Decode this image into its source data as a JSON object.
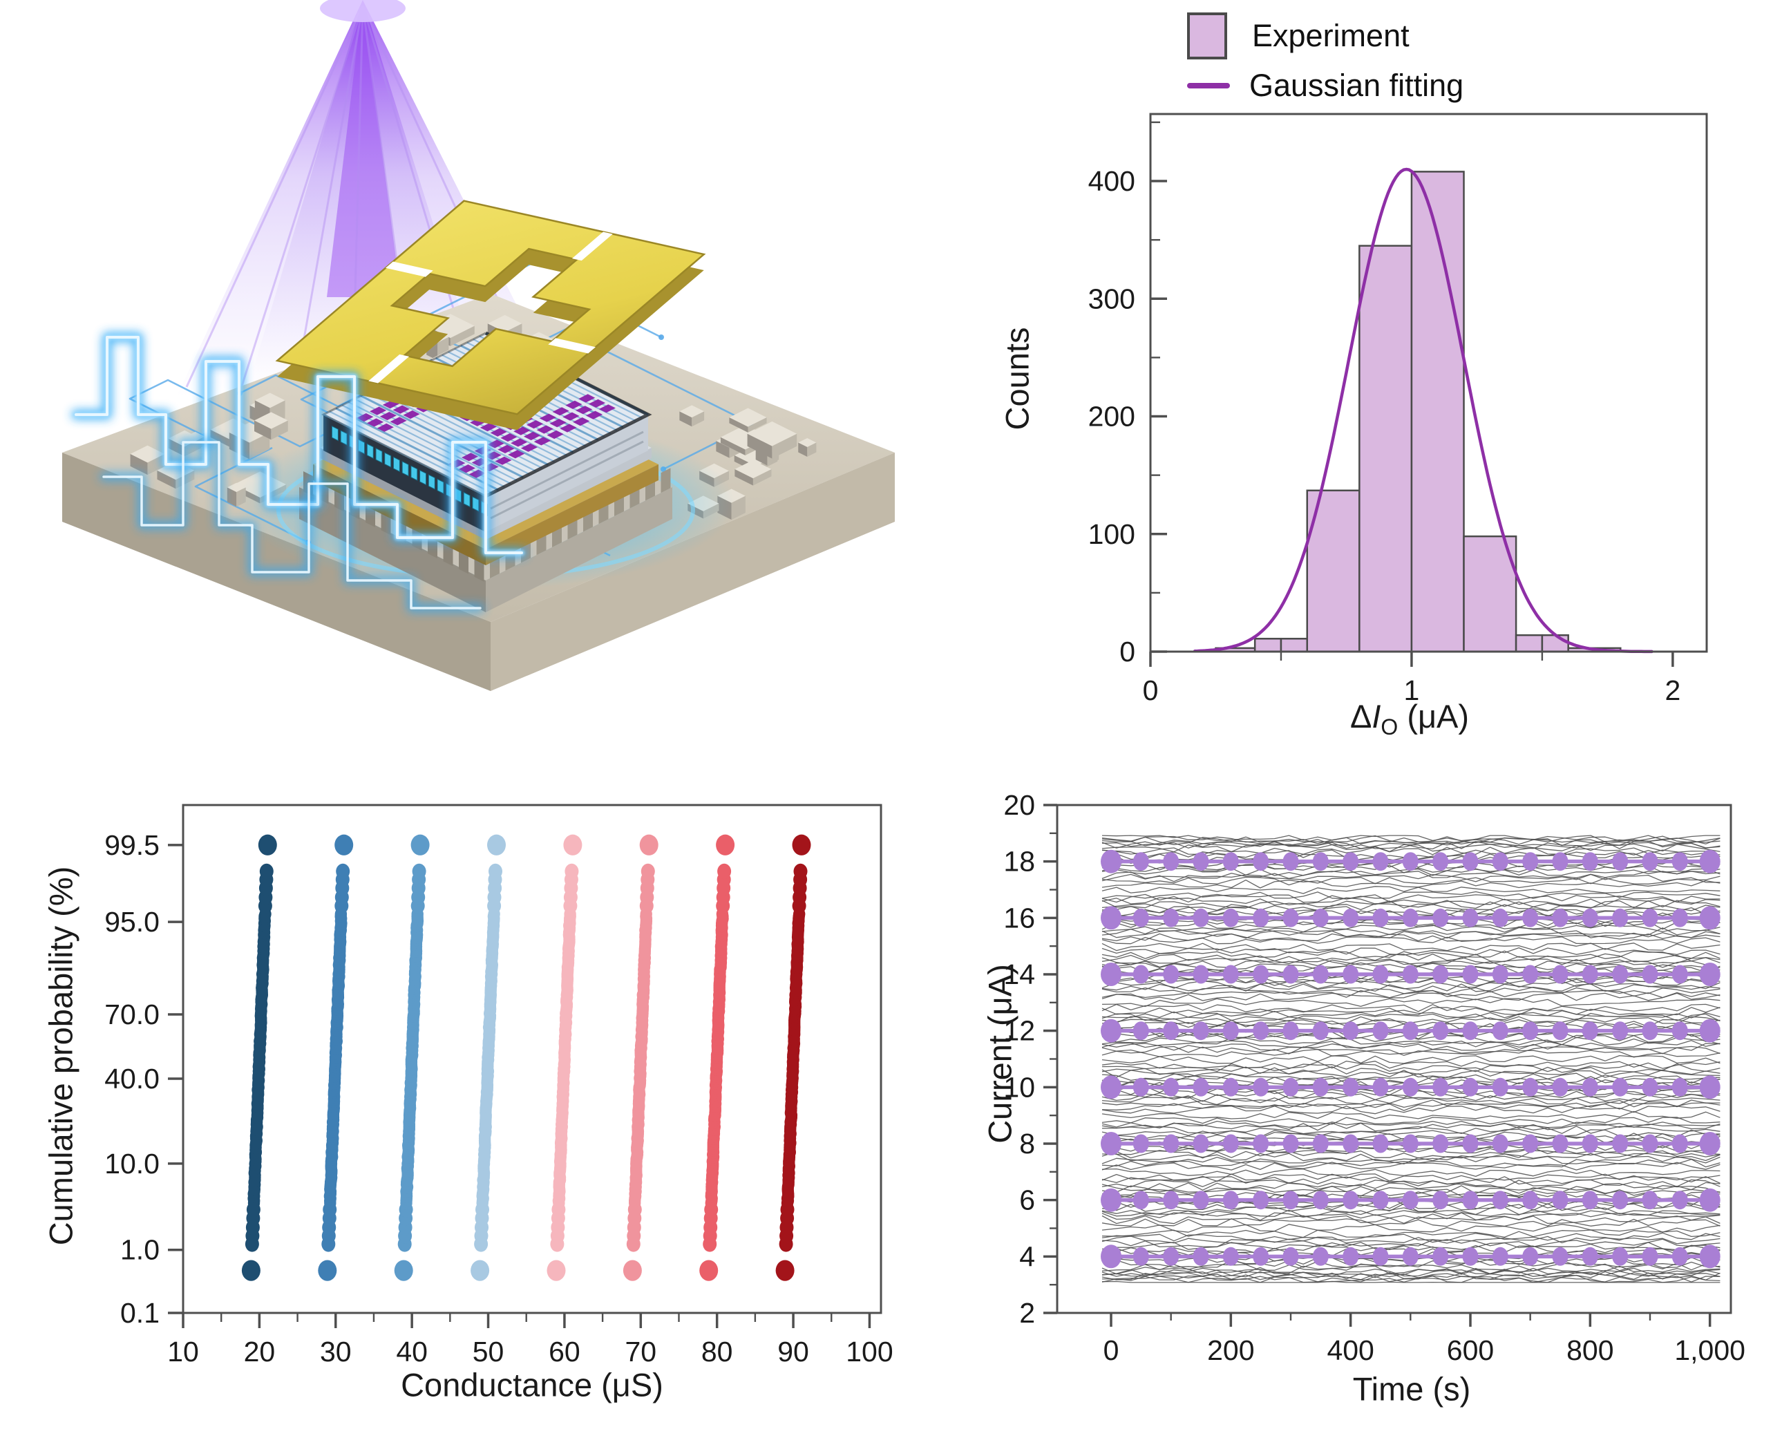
{
  "chart_data": [
    {
      "type": "bar",
      "panel": "output-current-histogram",
      "title": "",
      "xlabel": "ΔI_O (μA)",
      "xlabel_parts": {
        "prefix": "Δ",
        "symbol": "I",
        "subscript": "O",
        "suffix": " (μA)"
      },
      "ylabel": "Counts",
      "legend": [
        "Experiment",
        "Gaussian fitting"
      ],
      "xlim": [
        0,
        2.13
      ],
      "ylim": [
        0,
        457
      ],
      "xticks": {
        "values": [
          0,
          1,
          2
        ],
        "labels": [
          "0",
          "1",
          "2"
        ],
        "minor": [
          0.5,
          1.5
        ]
      },
      "yticks": {
        "values": [
          0,
          100,
          200,
          300,
          400
        ],
        "labels": [
          "0",
          "100",
          "200",
          "300",
          "400"
        ],
        "minor": [
          50,
          150,
          250,
          350,
          450
        ]
      },
      "bars": [
        [
          0.25,
          0.4,
          3
        ],
        [
          0.4,
          0.5,
          11
        ],
        [
          0.5,
          0.6,
          11
        ],
        [
          0.6,
          0.8,
          137
        ],
        [
          0.8,
          1.0,
          345
        ],
        [
          1.0,
          1.2,
          408
        ],
        [
          1.2,
          1.4,
          98
        ],
        [
          1.4,
          1.5,
          14
        ],
        [
          1.5,
          1.6,
          14
        ],
        [
          1.6,
          1.8,
          3
        ]
      ],
      "gaussian_fit": {
        "amplitude": 410,
        "mean": 0.98,
        "sigma": 0.22
      },
      "colors": {
        "bar_fill": "#dab8e0",
        "bar_edge": "#4a4a4a",
        "fit_line": "#8e2fa6"
      }
    },
    {
      "type": "scatter",
      "panel": "conductance-cumulative-probability",
      "xlabel": "Conductance (μS)",
      "ylabel": "Cumulative probability (%)",
      "yscale": "probit",
      "xlim": [
        10,
        101.5
      ],
      "zlim": [
        -3.09,
        3.06
      ],
      "xticks": {
        "values": [
          10,
          20,
          30,
          40,
          50,
          60,
          70,
          80,
          90,
          100
        ],
        "labels": [
          "10",
          "20",
          "30",
          "40",
          "50",
          "60",
          "70",
          "80",
          "90",
          "100"
        ],
        "minor": [
          15,
          25,
          35,
          45,
          55,
          65,
          75,
          85,
          95
        ]
      },
      "yticks": {
        "values": [
          99.5,
          95.0,
          70.0,
          40.0,
          10.0,
          1.0,
          0.1
        ],
        "labels": [
          "99.5",
          "95.0",
          "70.0",
          "40.0",
          "10.0",
          "1.0",
          "0.1"
        ]
      },
      "probability_range": [
        0.5,
        99.5
      ],
      "slant_uS_per_z": 0.42,
      "series": [
        {
          "conductance": 20,
          "color": "#1e4e71"
        },
        {
          "conductance": 30,
          "color": "#3f7fb4"
        },
        {
          "conductance": 40,
          "color": "#5d9bc9"
        },
        {
          "conductance": 50,
          "color": "#a8c9e2"
        },
        {
          "conductance": 60,
          "color": "#f6b6bd"
        },
        {
          "conductance": 70,
          "color": "#f0949d"
        },
        {
          "conductance": 80,
          "color": "#ea5f69"
        },
        {
          "conductance": 90,
          "color": "#a3141a"
        }
      ]
    },
    {
      "type": "line",
      "panel": "current-retention",
      "xlabel": "Time (s)",
      "ylabel": "Current (μA)",
      "xlim": [
        -90,
        1035
      ],
      "ylim": [
        2,
        20
      ],
      "xticks": {
        "values": [
          0,
          200,
          400,
          600,
          800,
          1000
        ],
        "labels": [
          "0",
          "200",
          "400",
          "600",
          "800",
          "1,000"
        ],
        "minor": [
          100,
          300,
          500,
          700,
          900
        ]
      },
      "yticks": {
        "values": [
          2,
          4,
          6,
          8,
          10,
          12,
          14,
          16,
          18,
          20
        ],
        "labels": [
          "2",
          "4",
          "6",
          "8",
          "10",
          "12",
          "14",
          "16",
          "18",
          "20"
        ],
        "minor": [
          3,
          5,
          7,
          9,
          11,
          13,
          15,
          17,
          19
        ]
      },
      "marker_series": {
        "levels": [
          4,
          6,
          8,
          10,
          12,
          14,
          16,
          18
        ],
        "time_start": 0,
        "time_end": 1000,
        "points_per_level": 21,
        "color": "#a97fd4"
      },
      "background_traces": {
        "band": [
          3.2,
          18.8
        ],
        "per_level": 16,
        "time_start": -15,
        "time_end": 1020,
        "color": "#4f4f4f"
      }
    }
  ],
  "panel_a": {
    "colors": {
      "beam": "#8b36f0",
      "beam_soft": "#b79df5",
      "gold": "#e6d24c",
      "gold_dark": "#a8922e",
      "board_top": "#d8d2c4",
      "board_side_left": "#aaa291",
      "board_side_right": "#c2baa9",
      "glow_blue": "#3ec2ff",
      "trace_blue": "#58a9e9",
      "chip_top": "#e2e9f1",
      "chip_stripe": "#8fb9da",
      "array_purple": "#8b1fa8",
      "bump_teal": "#45c8ea",
      "waveform_core": "#e8f7ff",
      "waveform_glow": "#2fa8f5"
    }
  }
}
